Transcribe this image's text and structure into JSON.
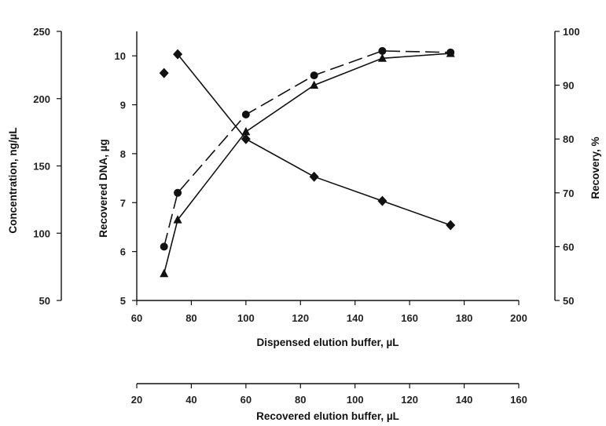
{
  "chart_data": {
    "type": "line",
    "title": "",
    "xlabel": "Dispensed elution buffer, µL",
    "xlim": [
      60,
      200
    ],
    "x_ticks": [
      "60",
      "80",
      "100",
      "120",
      "140",
      "160",
      "180",
      "200"
    ],
    "secondary_x": {
      "label": "Recovered elution buffer, µL",
      "lim": [
        20,
        160
      ],
      "ticks": [
        "20",
        "40",
        "60",
        "80",
        "100",
        "120",
        "140",
        "160"
      ]
    },
    "ylabel": "Recovered DNA, µg",
    "ylim": [
      5,
      10.5
    ],
    "y_ticks": [
      "5",
      "6",
      "7",
      "8",
      "9",
      "10"
    ],
    "right_y": {
      "label": "Recovery, %",
      "lim": [
        50,
        100
      ],
      "ticks": [
        "50",
        "60",
        "70",
        "80",
        "90",
        "100"
      ]
    },
    "outer_left_y": {
      "label": "Concentration, ng/µL",
      "lim": [
        50,
        250
      ],
      "ticks": [
        "50",
        "100",
        "150",
        "200",
        "250"
      ]
    },
    "grid": false,
    "series": [
      {
        "marker": "circle",
        "dash": "long-dash",
        "axis": "left",
        "x": [
          70,
          75,
          100,
          125,
          150,
          175
        ],
        "y": [
          6.1,
          7.2,
          8.8,
          9.6,
          10.1,
          10.07
        ]
      },
      {
        "marker": "triangle",
        "dash": "solid",
        "axis": "left",
        "x": [
          70,
          75,
          100,
          125,
          150,
          175
        ],
        "y": [
          5.55,
          6.65,
          8.45,
          9.4,
          9.95,
          10.05
        ]
      },
      {
        "marker": "diamond",
        "dash": "solid",
        "axis": "outer_left",
        "x": [
          70,
          75,
          100,
          125,
          150,
          175
        ],
        "y": [
          219,
          233,
          170,
          142,
          124,
          106
        ],
        "connected_from_index": 1
      }
    ]
  }
}
